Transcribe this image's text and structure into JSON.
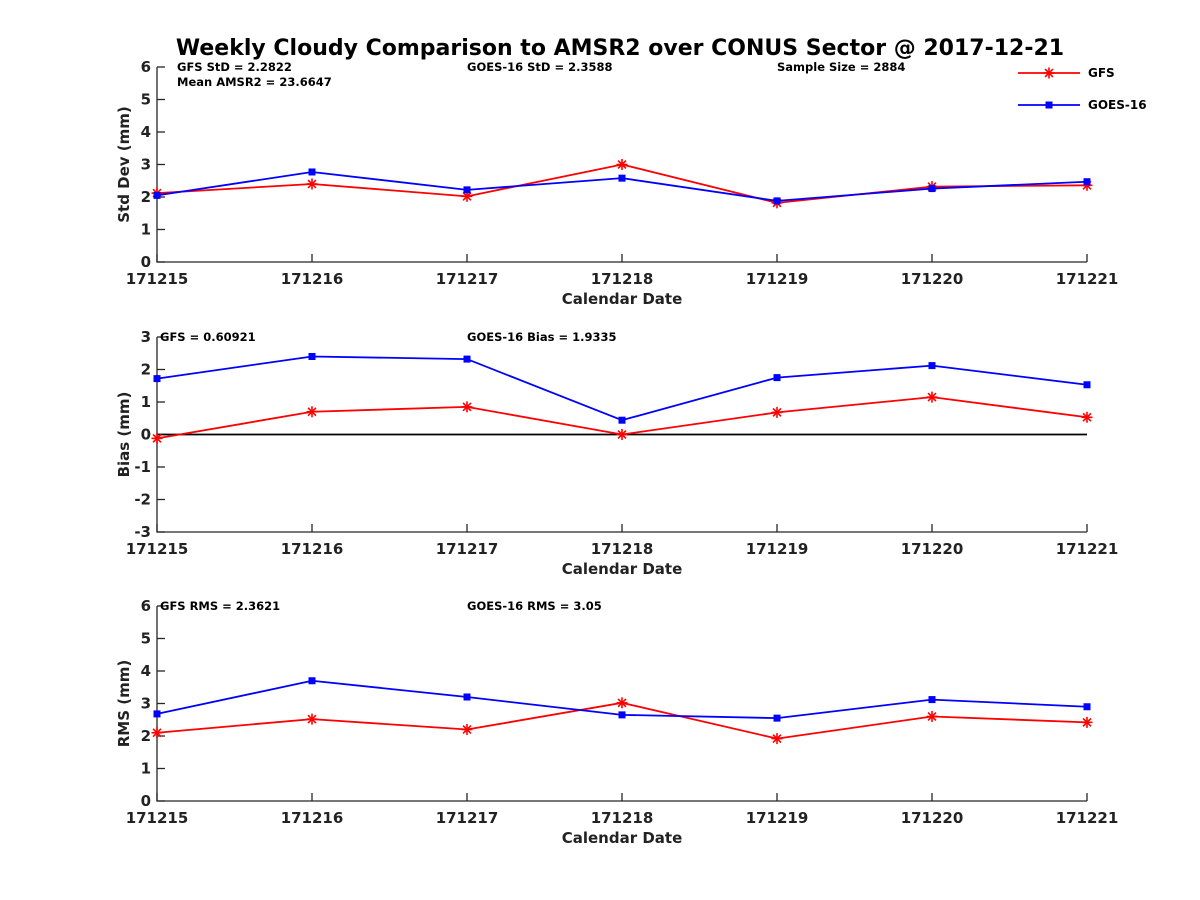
{
  "title": "Weekly Cloudy Comparison to AMSR2 over CONUS Sector @ 2017-12-21",
  "legend": {
    "placement": "top-right",
    "entries": [
      {
        "label": "GFS",
        "color": "#ff0000",
        "marker": "asterisk"
      },
      {
        "label": "GOES-16",
        "color": "#0000ff",
        "marker": "square"
      }
    ]
  },
  "chart_data": [
    {
      "type": "line",
      "xlabel": "Calendar Date",
      "ylabel": "Std Dev (mm)",
      "categories": [
        "171215",
        "171216",
        "171217",
        "171218",
        "171219",
        "171220",
        "171221"
      ],
      "ylim": [
        0,
        6
      ],
      "yticks": [
        0,
        1,
        2,
        3,
        4,
        5,
        6
      ],
      "grid": false,
      "zero_line": false,
      "annotations": [
        "GFS StD = 2.2822",
        "Mean AMSR2 = 23.6647",
        "GOES-16 StD = 2.3588",
        "Sample Size = 2884"
      ],
      "series": [
        {
          "name": "GFS",
          "color": "#ff0000",
          "marker": "asterisk",
          "values": [
            2.12,
            2.4,
            2.02,
            3.0,
            1.82,
            2.32,
            2.36
          ]
        },
        {
          "name": "GOES-16",
          "color": "#0000ff",
          "marker": "square",
          "values": [
            2.05,
            2.77,
            2.22,
            2.58,
            1.88,
            2.26,
            2.47
          ]
        }
      ]
    },
    {
      "type": "line",
      "xlabel": "Calendar Date",
      "ylabel": "Bias (mm)",
      "categories": [
        "171215",
        "171216",
        "171217",
        "171218",
        "171219",
        "171220",
        "171221"
      ],
      "ylim": [
        -3,
        3
      ],
      "yticks": [
        -3,
        -2,
        -1,
        0,
        1,
        2,
        3
      ],
      "grid": false,
      "zero_line": true,
      "annotations": [
        "GFS = 0.60921",
        "GOES-16 Bias  = 1.9335"
      ],
      "series": [
        {
          "name": "GFS",
          "color": "#ff0000",
          "marker": "asterisk",
          "values": [
            -0.12,
            0.7,
            0.85,
            0.0,
            0.68,
            1.15,
            0.53
          ]
        },
        {
          "name": "GOES-16",
          "color": "#0000ff",
          "marker": "square",
          "values": [
            1.72,
            2.4,
            2.32,
            0.44,
            1.75,
            2.12,
            1.53
          ]
        }
      ]
    },
    {
      "type": "line",
      "xlabel": "Calendar Date",
      "ylabel": "RMS (mm)",
      "categories": [
        "171215",
        "171216",
        "171217",
        "171218",
        "171219",
        "171220",
        "171221"
      ],
      "ylim": [
        0,
        6
      ],
      "yticks": [
        0,
        1,
        2,
        3,
        4,
        5,
        6
      ],
      "grid": false,
      "zero_line": false,
      "annotations": [
        "GFS RMS = 2.3621",
        "GOES-16 RMS = 3.05"
      ],
      "series": [
        {
          "name": "GFS",
          "color": "#ff0000",
          "marker": "asterisk",
          "values": [
            2.1,
            2.52,
            2.2,
            3.02,
            1.92,
            2.6,
            2.42
          ]
        },
        {
          "name": "GOES-16",
          "color": "#0000ff",
          "marker": "square",
          "values": [
            2.68,
            3.7,
            3.2,
            2.65,
            2.55,
            3.12,
            2.9
          ]
        }
      ]
    }
  ]
}
